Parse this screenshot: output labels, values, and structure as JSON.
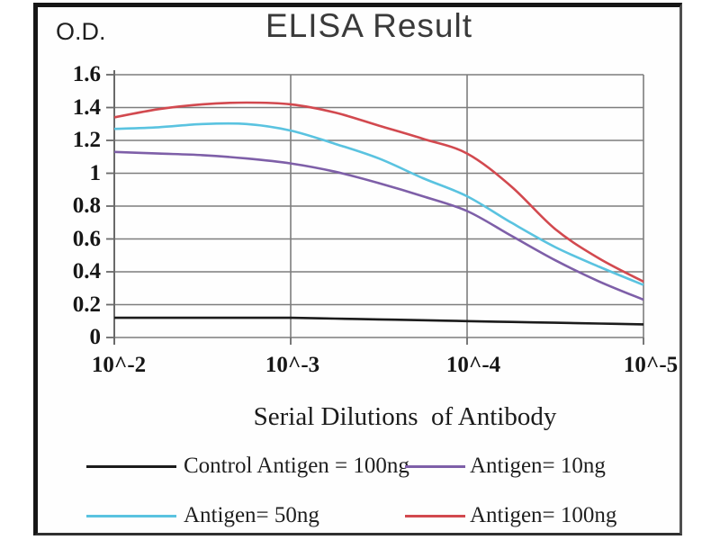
{
  "header": {
    "title": "ELISA Result",
    "y_axis_unit_label": "O.D."
  },
  "x_axis": {
    "title": "Serial Dilutions  of Antibody",
    "tick_labels": [
      "10^-2",
      "10^-3",
      "10^-4",
      "10^-5"
    ]
  },
  "y_axis": {
    "tick_labels": [
      "1.6",
      "1.4",
      "1.2",
      "1",
      "0.8",
      "0.6",
      "0.4",
      "0.2",
      "0"
    ],
    "tick_values": [
      1.6,
      1.4,
      1.2,
      1.0,
      0.8,
      0.6,
      0.4,
      0.2,
      0
    ]
  },
  "colors": {
    "control": "#1b1b1b",
    "antigen_10": "#7e5fa8",
    "antigen_50": "#5ac3e0",
    "antigen_100": "#d2494f",
    "grid": "#7d7d7d",
    "axis": "#6a6a6a"
  },
  "legend": {
    "rows": [
      [
        {
          "key": "control",
          "label": "Control Antigen = 100ng",
          "color": "#1b1b1b"
        },
        {
          "key": "antigen-10",
          "label": "Antigen= 10ng",
          "color": "#7e5fa8"
        }
      ],
      [
        {
          "key": "antigen-50",
          "label": "Antigen= 50ng",
          "color": "#5ac3e0"
        },
        {
          "key": "antigen-100",
          "label": "Antigen= 100ng",
          "color": "#d2494f"
        }
      ]
    ]
  },
  "chart_data": {
    "type": "line",
    "title": "ELISA Result",
    "xlabel": "Serial Dilutions  of Antibody",
    "ylabel": "O.D.",
    "x_scale": "log decades, 10^-2 to 10^-5",
    "x": [
      -2,
      -2.25,
      -2.5,
      -2.75,
      -3,
      -3.25,
      -3.5,
      -3.75,
      -4,
      -4.25,
      -4.5,
      -4.75,
      -5
    ],
    "x_tick_decades": [
      -2,
      -3,
      -4,
      -5
    ],
    "x_tick_labels": [
      "10^-2",
      "10^-3",
      "10^-4",
      "10^-5"
    ],
    "ylim": [
      0,
      1.6
    ],
    "y_ticks": [
      0,
      0.2,
      0.4,
      0.6,
      0.8,
      1.0,
      1.2,
      1.4,
      1.6
    ],
    "grid": true,
    "legend_position": "bottom",
    "series": [
      {
        "key": "antigen-10",
        "name": "Antigen= 10ng",
        "color": "#7e5fa8",
        "values": [
          1.13,
          1.12,
          1.11,
          1.09,
          1.06,
          1.01,
          0.94,
          0.86,
          0.77,
          0.62,
          0.47,
          0.34,
          0.23
        ]
      },
      {
        "key": "antigen-50",
        "name": "Antigen= 50ng",
        "color": "#5ac3e0",
        "values": [
          1.27,
          1.28,
          1.3,
          1.3,
          1.26,
          1.18,
          1.09,
          0.97,
          0.86,
          0.7,
          0.55,
          0.43,
          0.32
        ]
      },
      {
        "key": "antigen-100",
        "name": "Antigen= 100ng",
        "color": "#d2494f",
        "values": [
          1.34,
          1.39,
          1.42,
          1.43,
          1.42,
          1.37,
          1.29,
          1.21,
          1.12,
          0.92,
          0.66,
          0.48,
          0.34
        ]
      },
      {
        "key": "control",
        "name": "Control Antigen = 100ng",
        "color": "#1b1b1b",
        "values": [
          0.12,
          0.12,
          0.12,
          0.12,
          0.12,
          0.115,
          0.11,
          0.105,
          0.1,
          0.095,
          0.09,
          0.085,
          0.08
        ]
      }
    ]
  }
}
